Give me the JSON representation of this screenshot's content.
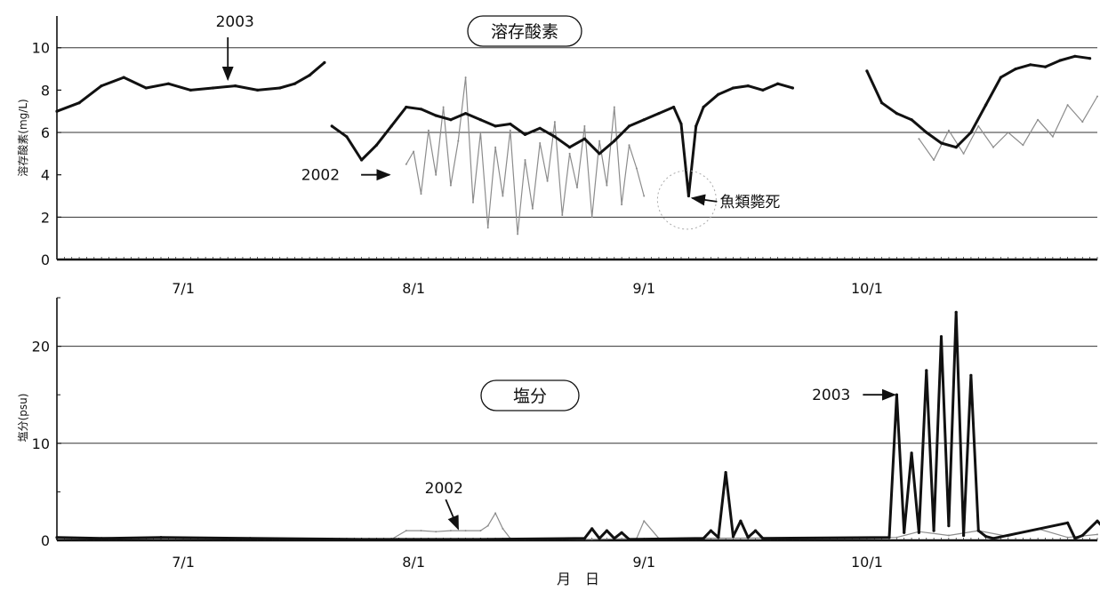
{
  "x_label": "月　日",
  "chart_data": [
    {
      "type": "line",
      "title": "溶存酸素",
      "ylabel": "溶存酸素(mg/L)",
      "ylim": [
        0,
        11.5
      ],
      "yticks": [
        "0",
        "2",
        "4",
        "6",
        "8",
        "10"
      ],
      "grid_values": [
        2,
        6,
        10
      ],
      "xticks": [
        "7/1",
        "8/1",
        "9/1",
        "10/1"
      ],
      "colors": {
        "y2003": "#111111",
        "y2002": "#8c8c8c"
      },
      "annotations": [
        {
          "text": "2003",
          "x": "2003-07-07",
          "y": 8.5
        },
        {
          "text": "2002",
          "x": "2002-07-29",
          "y": 4.0
        },
        {
          "text": "魚類斃死",
          "x": "2003-09-07",
          "y": 2.9
        }
      ],
      "series": [
        {
          "name": "2003",
          "segments": [
            {
              "x": [
                "06-14",
                "06-17",
                "06-20",
                "06-23",
                "06-26",
                "06-29",
                "07-02",
                "07-05",
                "07-08",
                "07-11",
                "07-14",
                "07-16",
                "07-18",
                "07-20"
              ],
              "y": [
                7.0,
                7.4,
                8.2,
                8.6,
                8.1,
                8.3,
                8.0,
                8.1,
                8.2,
                8.0,
                8.1,
                8.3,
                8.7,
                9.3
              ]
            },
            {
              "x": [
                "07-21",
                "07-23",
                "07-25",
                "07-27",
                "07-29",
                "07-31",
                "08-02",
                "08-04",
                "08-06",
                "08-08",
                "08-10",
                "08-12",
                "08-14",
                "08-16",
                "08-18",
                "08-20",
                "08-22",
                "08-24",
                "08-26",
                "08-28",
                "08-30",
                "09-01",
                "09-03",
                "09-05",
                "09-06",
                "09-07",
                "09-08",
                "09-09",
                "09-11",
                "09-13",
                "09-15",
                "09-17",
                "09-19",
                "09-21"
              ],
              "y": [
                6.3,
                5.8,
                4.7,
                5.4,
                6.3,
                7.2,
                7.1,
                6.8,
                6.6,
                6.9,
                6.6,
                6.3,
                6.4,
                5.9,
                6.2,
                5.8,
                5.3,
                5.7,
                5.0,
                5.6,
                6.3,
                6.6,
                6.9,
                7.2,
                6.4,
                3.0,
                6.3,
                7.2,
                7.8,
                8.1,
                8.2,
                8.0,
                8.3,
                8.1
              ]
            },
            {
              "x": [
                "10-01",
                "10-03",
                "10-05",
                "10-07",
                "10-09",
                "10-11",
                "10-13",
                "10-15",
                "10-17",
                "10-19",
                "10-21",
                "10-23",
                "10-25",
                "10-27",
                "10-29",
                "10-31"
              ],
              "y": [
                8.9,
                7.4,
                6.9,
                6.6,
                6.0,
                5.5,
                5.3,
                6.0,
                7.3,
                8.6,
                9.0,
                9.2,
                9.1,
                9.4,
                9.6,
                9.5
              ]
            }
          ]
        },
        {
          "name": "2002",
          "segments": [
            {
              "x": [
                "07-31",
                "08-01",
                "08-02",
                "08-03",
                "08-04",
                "08-05",
                "08-06",
                "08-07",
                "08-08",
                "08-09",
                "08-10",
                "08-11",
                "08-12",
                "08-13",
                "08-14",
                "08-15",
                "08-16",
                "08-17",
                "08-18",
                "08-19",
                "08-20",
                "08-21",
                "08-22",
                "08-23",
                "08-24",
                "08-25",
                "08-26",
                "08-27",
                "08-28",
                "08-29",
                "08-30",
                "08-31",
                "09-01"
              ],
              "y": [
                4.5,
                5.1,
                3.1,
                6.1,
                4.0,
                7.2,
                3.5,
                5.6,
                8.6,
                2.7,
                6.0,
                1.5,
                5.3,
                3.0,
                6.1,
                1.2,
                4.7,
                2.4,
                5.5,
                3.7,
                6.5,
                2.1,
                5.0,
                3.4,
                6.3,
                2.0,
                5.6,
                3.5,
                7.2,
                2.6,
                5.4,
                4.3,
                3.0
              ]
            },
            {
              "x": [
                "10-08",
                "10-10",
                "10-12",
                "10-14",
                "10-16",
                "10-18",
                "10-20",
                "10-22",
                "10-24",
                "10-26",
                "10-28",
                "10-30",
                "11-01"
              ],
              "y": [
                5.7,
                4.7,
                6.1,
                5.0,
                6.3,
                5.3,
                6.0,
                5.4,
                6.6,
                5.8,
                7.3,
                6.5,
                7.7
              ]
            }
          ]
        }
      ]
    },
    {
      "type": "line",
      "title": "塩分",
      "ylabel": "塩分(psu)",
      "ylim": [
        0,
        25
      ],
      "yticks": [
        "0",
        "10",
        "20"
      ],
      "grid_values": [
        10,
        20
      ],
      "xticks": [
        "7/1",
        "8/1",
        "9/1",
        "10/1"
      ],
      "annotations": [
        {
          "text": "2003",
          "x": "2003-10-05",
          "y": 15
        },
        {
          "text": "2002",
          "x": "2002-08-07",
          "y": 1.0
        }
      ],
      "series": [
        {
          "name": "2003",
          "segments": [
            {
              "x": [
                "06-14",
                "06-20",
                "06-28",
                "07-10",
                "07-25",
                "08-10",
                "08-24",
                "08-25",
                "08-26",
                "08-27",
                "08-28",
                "08-29",
                "08-30",
                "09-09",
                "09-10",
                "09-11",
                "09-12",
                "09-13",
                "09-14",
                "09-15",
                "09-16",
                "09-17",
                "10-04",
                "10-05",
                "10-06",
                "10-07",
                "10-08",
                "10-09",
                "10-10",
                "10-11",
                "10-12",
                "10-13",
                "10-14",
                "10-15",
                "10-16",
                "10-17",
                "10-18",
                "10-28",
                "10-29",
                "10-30",
                "11-01",
                "11-03"
              ],
              "y": [
                0.3,
                0.2,
                0.3,
                0.2,
                0.1,
                0.1,
                0.2,
                1.2,
                0.2,
                1.0,
                0.2,
                0.8,
                0.1,
                0.2,
                1.0,
                0.3,
                7.0,
                0.4,
                2.0,
                0.3,
                1.0,
                0.2,
                0.3,
                15.0,
                0.8,
                9.0,
                0.8,
                17.5,
                1.0,
                21.0,
                1.5,
                23.5,
                0.5,
                17.0,
                1.0,
                0.4,
                0.2,
                1.8,
                0.2,
                0.5,
                2.0,
                0.3
              ]
            }
          ]
        },
        {
          "name": "2002",
          "segments": [
            {
              "x": [
                "07-29",
                "07-31",
                "08-02",
                "08-04",
                "08-06",
                "08-08",
                "08-10",
                "08-11",
                "08-12",
                "08-13",
                "08-14",
                "08-16",
                "08-25",
                "08-31",
                "09-01",
                "09-03",
                "10-05",
                "10-08",
                "10-12",
                "10-16",
                "10-20",
                "10-24",
                "10-28",
                "11-01"
              ],
              "y": [
                0.1,
                1.0,
                1.0,
                0.9,
                1.0,
                1.0,
                1.0,
                1.5,
                2.8,
                1.2,
                0.2,
                0.1,
                0.1,
                0.2,
                2.0,
                0.2,
                0.3,
                0.9,
                0.5,
                1.0,
                0.4,
                1.2,
                0.3,
                0.6
              ]
            }
          ]
        }
      ]
    }
  ]
}
